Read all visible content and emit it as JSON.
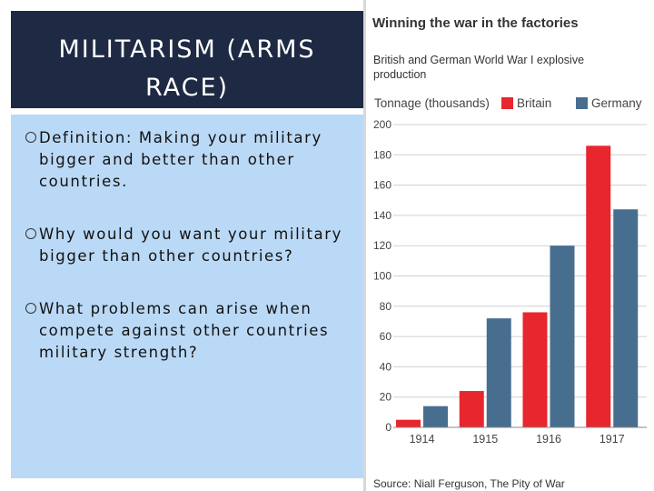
{
  "slide": {
    "title_line1": "MILITARISM (ARMS",
    "title_line2": "RACE)",
    "bullets": [
      {
        "line1": "Definition: Making your military",
        "line2": "bigger and better than other",
        "line3": "countries."
      },
      {
        "line1": "Why would you want your military",
        "line2": "bigger than other countries?",
        "line3": ""
      },
      {
        "line1": "What problems can arise when",
        "line2": "compete against other countries",
        "line3": "military strength?"
      }
    ],
    "colors": {
      "title_bg": "#1e2a44",
      "panel_bg": "#bad9f6"
    }
  },
  "chart_data": {
    "type": "bar",
    "title": "Winning the war in the factories",
    "subtitle": "British and German World War I explosive production",
    "ylabel": "Tonnage (thousands)",
    "categories": [
      "1914",
      "1915",
      "1916",
      "1917"
    ],
    "series": [
      {
        "name": "Britain",
        "color": "#e8262d",
        "values": [
          5,
          24,
          76,
          186
        ]
      },
      {
        "name": "Germany",
        "color": "#476e8e",
        "values": [
          14,
          72,
          120,
          144
        ]
      }
    ],
    "ylim": [
      0,
      200
    ],
    "yticks": [
      "0",
      "20",
      "40",
      "60",
      "80",
      "100",
      "120",
      "140",
      "160",
      "180",
      "200"
    ],
    "legend_position": "top",
    "grid": true,
    "source": "Source: Niall Ferguson, The Pity of War"
  }
}
